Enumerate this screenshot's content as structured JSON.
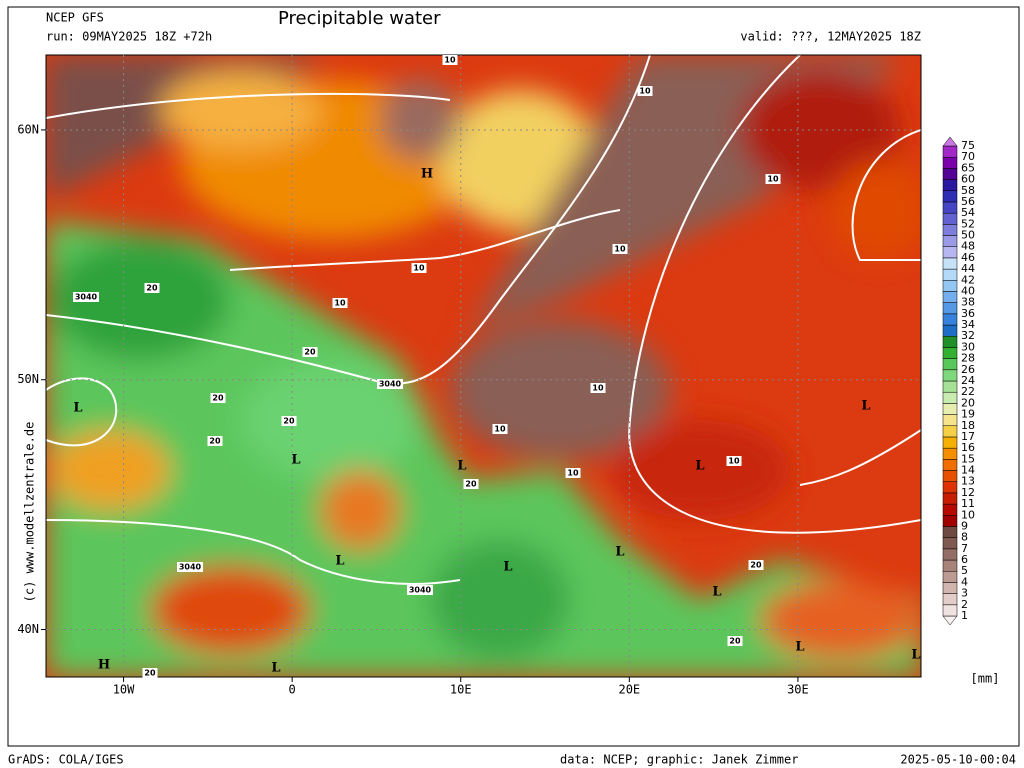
{
  "header": {
    "model": "NCEP GFS",
    "title": "Precipitable water",
    "run": "run: 09MAY2025 18Z +72h",
    "valid": "valid: ???, 12MAY2025 18Z"
  },
  "map": {
    "lonlim": [
      -14.6,
      37.3
    ],
    "latlim": [
      38.1,
      63
    ],
    "lon_ticks": [
      {
        "value": -10,
        "label": "10W"
      },
      0,
      {
        "value": 10,
        "label": "10E"
      },
      {
        "value": 20,
        "label": "20E"
      },
      {
        "value": 30,
        "label": "30E"
      }
    ],
    "lat_ticks": [
      {
        "value": 60,
        "label": "60N"
      },
      {
        "value": 50,
        "label": "50N"
      },
      {
        "value": 40,
        "label": "40N"
      }
    ],
    "side_text": "(c) www.modellzentrale.de",
    "labels": [
      "H",
      "3040",
      "10",
      "10",
      "10",
      "10",
      "10",
      "10",
      "20",
      "20",
      "3040",
      "10",
      "10",
      "10",
      "10",
      "L",
      "L",
      "L",
      "L",
      "L",
      "20",
      "20",
      "20",
      "20",
      "3040",
      "L",
      "L",
      "L",
      "3040",
      "L",
      "20",
      "L",
      "L",
      "L",
      "H",
      "20",
      "20"
    ],
    "colorbar": {
      "levels": [
        1,
        2,
        3,
        4,
        5,
        6,
        7,
        8,
        9,
        10,
        11,
        12,
        13,
        14,
        15,
        16,
        17,
        18,
        19,
        20,
        22,
        24,
        26,
        28,
        30,
        32,
        34,
        36,
        38,
        40,
        42,
        44,
        46,
        48,
        50,
        52,
        54,
        56,
        58,
        60,
        65,
        70,
        75
      ],
      "colors": [
        "#f8f2f2",
        "#efe2df",
        "#e2cdc8",
        "#d1b5ae",
        "#bd9b93",
        "#a8837a",
        "#946e65",
        "#7f5a51",
        "#6e4a42",
        "#a00000",
        "#b40a00",
        "#c81e00",
        "#dc3200",
        "#e65000",
        "#f06e00",
        "#f58f00",
        "#f5b000",
        "#f5cf46",
        "#f5e48c",
        "#e8eeb0",
        "#c8ecb0",
        "#a6e296",
        "#80d87c",
        "#58c85a",
        "#32b032",
        "#1f8f2a",
        "#1e6ec8",
        "#3682dc",
        "#5498e6",
        "#74aeee",
        "#94c6f4",
        "#b4dafa",
        "#c6e2f8",
        "#b6b6f0",
        "#9a9ae6",
        "#7e7edc",
        "#6262d2",
        "#4646c4",
        "#2e2eb4",
        "#2a18a0",
        "#520096",
        "#7a00ac",
        "#a228c8",
        "#c878e0"
      ],
      "unit": "[mm]"
    }
  },
  "footer": {
    "left": "GrADS: COLA/IGES",
    "center": "data: NCEP; graphic: Janek Zimmer",
    "right": "2025-05-10-00:04"
  }
}
